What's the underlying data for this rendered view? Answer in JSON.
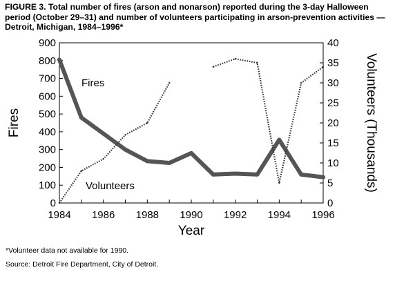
{
  "figure": {
    "title": "FIGURE 3. Total number of fires (arson and nonarson) reported during the 3-day Halloween period (October 29–31) and number of volunteers participating in arson-prevention activities — Detroit, Michigan, 1984–1996*",
    "footnote": "*Volunteer data not available for 1990.",
    "source": "Source:  Detroit Fire Department, City of Detroit."
  },
  "chart_data": {
    "type": "line",
    "xlabel": "Year",
    "ylabel": "Fires",
    "y2label": "Volunteers (Thousands)",
    "xlim": [
      1984,
      1996
    ],
    "ylim": [
      0,
      900
    ],
    "y2lim": [
      0,
      40
    ],
    "xticks": [
      1984,
      1986,
      1988,
      1990,
      1992,
      1994,
      1996
    ],
    "yticks": [
      0,
      100,
      200,
      300,
      400,
      500,
      600,
      700,
      800,
      900
    ],
    "y2ticks": [
      0,
      5,
      10,
      15,
      20,
      25,
      30,
      35,
      40
    ],
    "grid": false,
    "series": [
      {
        "name": "Fires",
        "axis": "left",
        "style": "thick",
        "color": "#555555",
        "x": [
          1984,
          1985,
          1986,
          1987,
          1988,
          1989,
          1990,
          1991,
          1992,
          1993,
          1994,
          1995,
          1996
        ],
        "values": [
          805,
          480,
          390,
          300,
          235,
          225,
          280,
          160,
          165,
          160,
          355,
          160,
          145
        ]
      },
      {
        "name": "Volunteers",
        "axis": "right",
        "style": "dotted",
        "color": "#333333",
        "segments": [
          {
            "x": [
              1984,
              1985,
              1986,
              1987,
              1988,
              1989
            ],
            "values": [
              0,
              8,
              11,
              17,
              20,
              30
            ]
          },
          {
            "x": [
              1991,
              1992,
              1993,
              1994,
              1995,
              1996
            ],
            "values": [
              34,
              36,
              35,
              5,
              30,
              34
            ]
          }
        ]
      }
    ]
  }
}
